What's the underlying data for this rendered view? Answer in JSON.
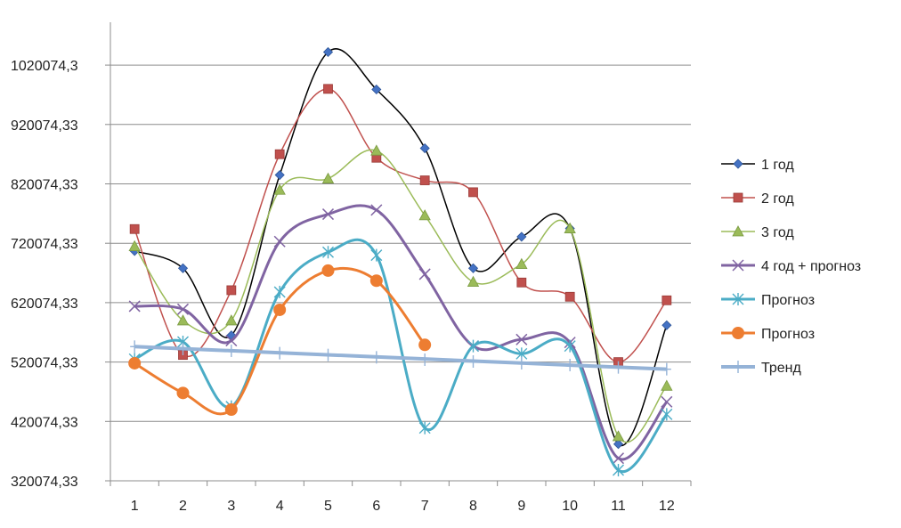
{
  "chart_data": {
    "type": "line",
    "title": "",
    "xlabel": "",
    "ylabel": "",
    "categories": [
      "1",
      "2",
      "3",
      "4",
      "5",
      "6",
      "7",
      "8",
      "9",
      "10",
      "11",
      "12"
    ],
    "y_tick_labels": [
      "320074,33",
      "420074,33",
      "520074,33",
      "620074,33",
      "720074,33",
      "820074,33",
      "920074,33",
      "1020074,3"
    ],
    "ylim": [
      320074.33,
      1070074.33
    ],
    "grid": true,
    "legend_position": "right",
    "series": [
      {
        "name": "1 год",
        "color": "#000000",
        "marker": "diamond",
        "marker_color": "#4472C4",
        "values": [
          707000,
          678000,
          565000,
          835000,
          1042000,
          979000,
          880000,
          678000,
          731000,
          745000,
          382000,
          582000
        ]
      },
      {
        "name": "2 год",
        "color": "#C0504D",
        "marker": "square",
        "marker_color": "#C0504D",
        "values": [
          744000,
          532000,
          641000,
          870000,
          980000,
          864000,
          826000,
          806000,
          654000,
          630000,
          520000,
          624000
        ]
      },
      {
        "name": "3 год",
        "color": "#9BBB59",
        "marker": "triangle",
        "marker_color": "#9BBB59",
        "values": [
          715000,
          590000,
          590000,
          810000,
          829000,
          876000,
          767000,
          655000,
          685000,
          745000,
          395000,
          480000
        ]
      },
      {
        "name": "4 год + прогноз",
        "color": "#8064A2",
        "marker": "x",
        "marker_color": "#8064A2",
        "values": [
          614000,
          609000,
          556000,
          723000,
          769000,
          776000,
          668000,
          547000,
          558000,
          553000,
          358000,
          453000
        ]
      },
      {
        "name": "Прогноз",
        "color": "#4BACC6",
        "marker": "asterisk",
        "marker_color": "#4BACC6",
        "values": [
          525000,
          554000,
          445000,
          638000,
          705000,
          700000,
          409000,
          547000,
          534000,
          547000,
          338000,
          432000
        ]
      },
      {
        "name": "Прогноз",
        "color": "#ED7D31",
        "marker": "circle",
        "marker_color": "#ED7D31",
        "values": [
          518000,
          468000,
          440000,
          608000,
          674000,
          657000,
          549000,
          null,
          null,
          null,
          null,
          null
        ]
      },
      {
        "name": "Тренд",
        "color": "#95B3D7",
        "marker": "plus",
        "marker_color": "#95B3D7",
        "trend": true,
        "values": [
          546000,
          542000,
          539000,
          535000,
          532000,
          528000,
          524000,
          521000,
          518000,
          515000,
          511000,
          508000
        ]
      }
    ]
  }
}
